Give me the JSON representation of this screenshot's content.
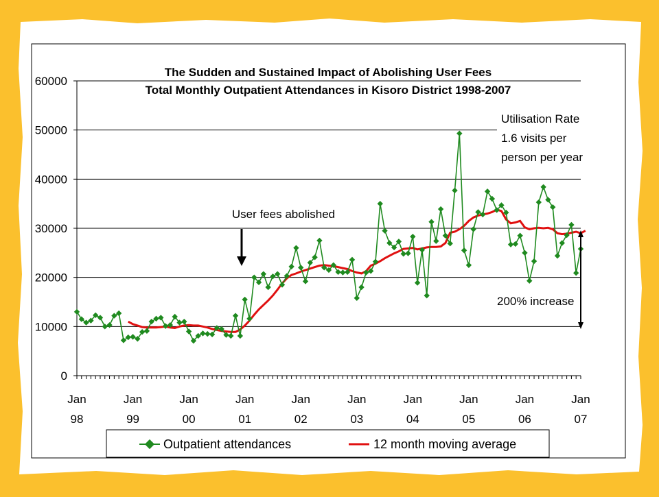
{
  "colors": {
    "background": "#fbc02d",
    "panel": "#ffffff",
    "series_attendance": "#1f8a1f",
    "series_average": "#e01010",
    "gridline": "#000000"
  },
  "chart_data": {
    "type": "line",
    "title": "The Sudden and Sustained Impact of Abolishing User Fees",
    "subtitle": "Total Monthly Outpatient Attendances in Kisoro District 1998-2007",
    "xlabel": "",
    "ylabel": "",
    "ylim": [
      0,
      60000
    ],
    "y_ticks": [
      "0",
      "10000",
      "20000",
      "30000",
      "40000",
      "50000",
      "60000"
    ],
    "x_range_months": "Jan 1998 – Mar 2007",
    "x_tick_labels": [
      {
        "month": "Jan",
        "year": "98"
      },
      {
        "month": "Jan",
        "year": "99"
      },
      {
        "month": "Jan",
        "year": "00"
      },
      {
        "month": "Jan",
        "year": "01"
      },
      {
        "month": "Jan",
        "year": "02"
      },
      {
        "month": "Jan",
        "year": "03"
      },
      {
        "month": "Jan",
        "year": "04"
      },
      {
        "month": "Jan",
        "year": "05"
      },
      {
        "month": "Jan",
        "year": "06"
      },
      {
        "month": "Jan",
        "year": "07"
      }
    ],
    "grid": true,
    "legend_position": "bottom",
    "series": [
      {
        "name": "Outpatient attendances",
        "style": "line-diamond",
        "values": [
          13000,
          11500,
          10800,
          11200,
          12300,
          11800,
          10000,
          10300,
          12200,
          12700,
          7200,
          7800,
          7900,
          7500,
          8900,
          9100,
          11000,
          11600,
          11800,
          10100,
          10300,
          12000,
          10800,
          11000,
          9000,
          7100,
          8100,
          8600,
          8500,
          8400,
          9700,
          9500,
          8300,
          8100,
          12200,
          8100,
          15500,
          11600,
          20000,
          19000,
          20700,
          18000,
          20200,
          20700,
          18500,
          20300,
          22200,
          26000,
          22000,
          19200,
          23000,
          24100,
          27500,
          22000,
          21500,
          22500,
          21100,
          21000,
          21100,
          23600,
          15800,
          18000,
          21000,
          21300,
          23200,
          35000,
          29500,
          27000,
          26100,
          27300,
          24800,
          24900,
          28300,
          18900,
          25600,
          16300,
          31300,
          27400,
          33900,
          28500,
          26900,
          37700,
          49300,
          25500,
          22500,
          29800,
          33300,
          32800,
          37500,
          36000,
          33700,
          34700,
          33200,
          26700,
          26800,
          28500,
          25000,
          19300,
          23300,
          35300,
          38400,
          35800,
          34300,
          24400,
          27000,
          28600,
          30700,
          20900,
          25800
        ]
      },
      {
        "name": "12 month moving average",
        "style": "line",
        "start_index": 11,
        "values": [
          11000,
          10500,
          10200,
          9900,
          9800,
          9800,
          9800,
          9900,
          10000,
          9800,
          9700,
          10000,
          10200,
          10300,
          10200,
          10200,
          10000,
          9800,
          9500,
          9300,
          9100,
          9000,
          8900,
          8900,
          9400,
          10200,
          11200,
          12400,
          13500,
          14400,
          15300,
          16300,
          17500,
          18800,
          19800,
          20500,
          20800,
          21200,
          21500,
          21800,
          22100,
          22400,
          22500,
          22400,
          22300,
          22100,
          21900,
          21700,
          21300,
          21000,
          20800,
          21300,
          22400,
          22800,
          23300,
          23900,
          24400,
          24900,
          25300,
          25800,
          25900,
          26000,
          25700,
          25900,
          26100,
          26200,
          26200,
          26300,
          27000,
          29100,
          29300,
          29800,
          30500,
          31500,
          32200,
          32600,
          32800,
          33000,
          33300,
          33800,
          33500,
          31800,
          31000,
          31200,
          31500,
          30200,
          29800,
          30000,
          30100,
          30000,
          30100,
          29800,
          29000,
          28800,
          28900,
          29100,
          29300,
          29000,
          29500
        ]
      }
    ],
    "annotations": [
      {
        "id": "fees",
        "text": "User fees abolished"
      },
      {
        "id": "util1",
        "text": "Utilisation Rate"
      },
      {
        "id": "util2",
        "text": "1.6 visits per"
      },
      {
        "id": "util3",
        "text": "person per year"
      },
      {
        "id": "increase",
        "text": "200% increase"
      }
    ]
  }
}
